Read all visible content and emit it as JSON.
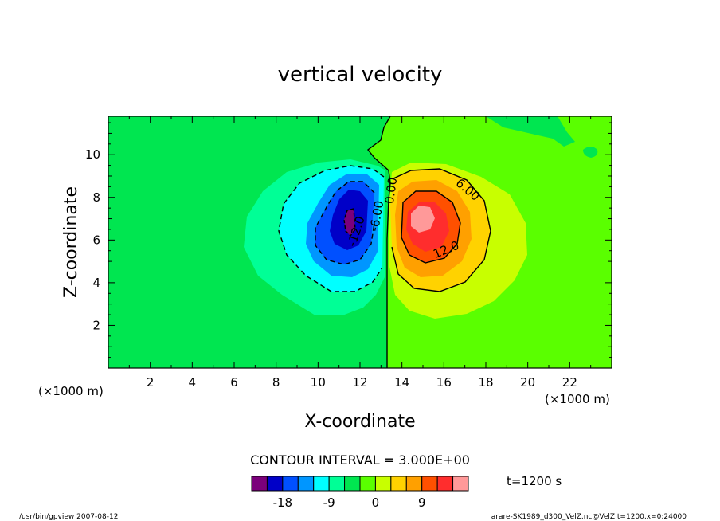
{
  "chart_data": {
    "type": "heatmap",
    "title": "vertical velocity",
    "xlabel": "X-coordinate",
    "ylabel": "Z-coordinate",
    "x_unit_label": "(×1000 m)",
    "x_unit_label_right": "(×1000 m)",
    "xlim": [
      0,
      24
    ],
    "ylim": [
      0,
      11.8
    ],
    "x_ticks": [
      2,
      4,
      6,
      8,
      10,
      12,
      14,
      16,
      18,
      20,
      22
    ],
    "y_ticks": [
      2,
      4,
      6,
      8,
      10
    ],
    "contour_interval_label": "CONTOUR INTERVAL = 3.000E+00",
    "time_label": "t=1200 s",
    "contour_labels": [
      "-12.0",
      "-6.00",
      "0.00",
      "6.00",
      "12.0"
    ],
    "color_levels": [
      -21,
      -18,
      -15,
      -12,
      -9,
      -6,
      -3,
      0,
      3,
      6,
      9,
      12,
      15
    ],
    "colors": [
      "#7b007b",
      "#0000c8",
      "#0050ff",
      "#0096ff",
      "#00ffff",
      "#00ff96",
      "#00e650",
      "#5aff00",
      "#c8ff00",
      "#ffd200",
      "#ffa000",
      "#ff5000",
      "#ff2d2d",
      "#ff9999"
    ],
    "colorbar_tick_labels": [
      "-18",
      "-9",
      "0",
      "9"
    ],
    "colorbar_tick_values": [
      -18,
      -9,
      0,
      9
    ],
    "downdraft_center": {
      "x": 11.5,
      "z": 7.0,
      "min_value": -19
    },
    "updraft_center": {
      "x": 15.0,
      "z": 7.0,
      "max_value": 16
    }
  },
  "footer": {
    "left": "/usr/bin/gpview   2007-08-12",
    "right": "arare-SK1989_d300_VelZ.nc@VelZ,t=1200,x=0:24000"
  }
}
